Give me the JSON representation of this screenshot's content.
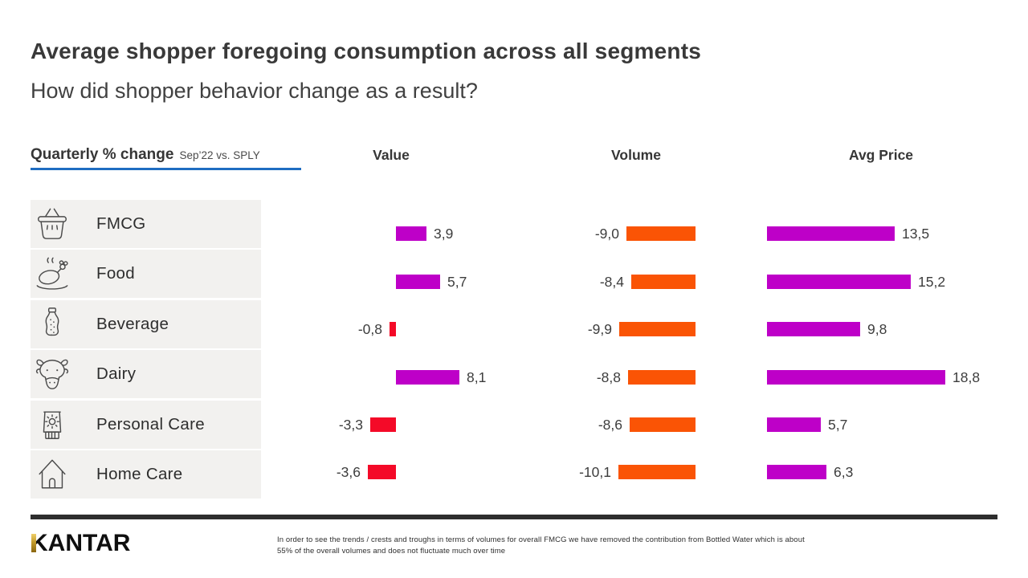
{
  "header": {
    "title": "Average shopper foregoing consumption across all segments",
    "subtitle": "How did shopper behavior change as a result?",
    "axis_label": "Quarterly % change",
    "axis_sublabel": "Sep’22 vs. SPLY",
    "underline_color": "#1F6DC1"
  },
  "columns": [
    "Value",
    "Volume",
    "Avg Price"
  ],
  "chart_data": {
    "type": "bar",
    "orientation": "horizontal",
    "unit": "quarterly % change, Sep’22 vs. SPLY",
    "legend": "none",
    "categories": [
      {
        "label": "FMCG",
        "icon": "basket-icon"
      },
      {
        "label": "Food",
        "icon": "roast-chicken-icon"
      },
      {
        "label": "Beverage",
        "icon": "soda-bottle-icon"
      },
      {
        "label": "Dairy",
        "icon": "cow-icon"
      },
      {
        "label": "Personal Care",
        "icon": "sunscreen-tube-icon"
      },
      {
        "label": "Home Care",
        "icon": "house-icon"
      }
    ],
    "series": [
      {
        "name": "Value",
        "values": [
          3.9,
          5.7,
          -0.8,
          8.1,
          -3.3,
          -3.6
        ],
        "labels": [
          "3,9",
          "5,7",
          "-0,8",
          "8,1",
          "-3,3",
          "-3,6"
        ],
        "xlim": [
          -5,
          10
        ]
      },
      {
        "name": "Volume",
        "values": [
          -9.0,
          -8.4,
          -9.9,
          -8.8,
          -8.6,
          -10.1
        ],
        "labels": [
          "-9,0",
          "-8,4",
          "-9,9",
          "-8,8",
          "-8,6",
          "-10,1"
        ],
        "xlim": [
          -11,
          0
        ]
      },
      {
        "name": "Avg Price",
        "values": [
          13.5,
          15.2,
          9.8,
          18.8,
          5.7,
          6.3
        ],
        "labels": [
          "13,5",
          "15,2",
          "9,8",
          "18,8",
          "5,7",
          "6,3"
        ],
        "xlim": [
          0,
          20
        ]
      }
    ],
    "colors": {
      "positive": "#BE00C8",
      "value_negative": "#F40A28",
      "volume_negative": "#FA5405",
      "row_background": "#F2F1EF"
    }
  },
  "footer": {
    "logo": "KANTAR",
    "note_line1": "In order to see the trends / crests and troughs in terms of volumes for overall FMCG we have removed the contribution from Bottled Water which is about",
    "note_line2": "55% of the overall volumes and does not fluctuate much over time"
  }
}
